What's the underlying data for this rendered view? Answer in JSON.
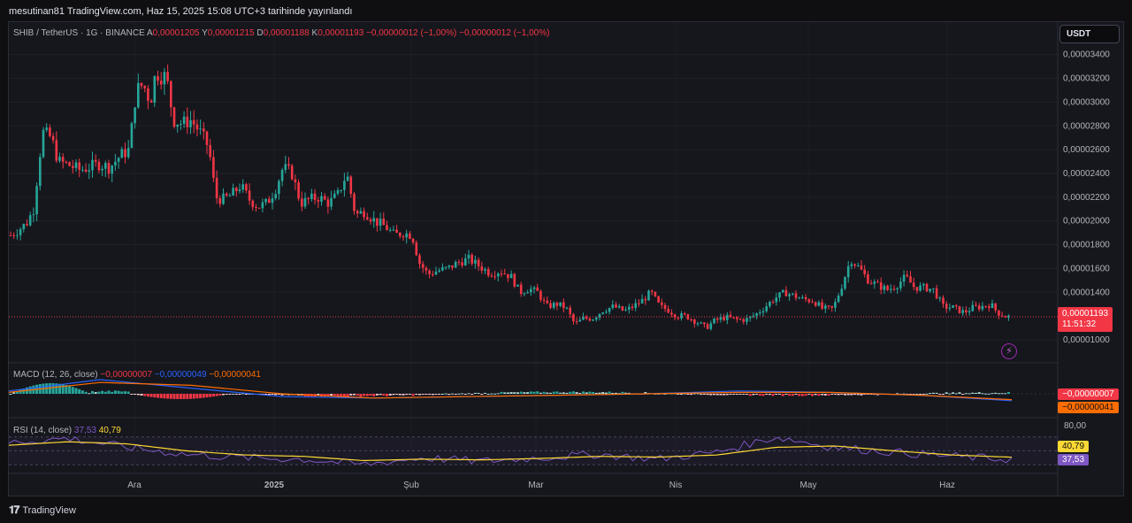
{
  "header": {
    "publish_line": "mesutinan81 TradingView.com, Haz 15, 2025 15:08 UTC+3 tarihinde yayınlandı"
  },
  "legend": {
    "symbol": "SHIB / TetherUS · 1G · BINANCE",
    "open_label": "A",
    "open": "0,00001205",
    "high_label": "Y",
    "high": "0,00001215",
    "low_label": "D",
    "low": "0,00001188",
    "close_label": "K",
    "close": "0,00001193",
    "change": "−0,00000012 (−1,00%)",
    "change2": "−0,00000012 (−1,00%)"
  },
  "currency_button": "USDT",
  "price_tag": {
    "price": "0,00001193",
    "countdown": "11:51:32"
  },
  "macd_legend": {
    "title": "MACD (12, 26, close)",
    "histogram": "−0,00000007",
    "macd": "−0,00000049",
    "signal": "−0,00000041"
  },
  "macd_tags": {
    "histogram": "−0,00000007",
    "signal": "−0,00000041"
  },
  "rsi_legend": {
    "title": "RSI (14, close)",
    "rsi": "37,53",
    "ma": "40,79"
  },
  "rsi_axis": {
    "top": "80,00"
  },
  "rsi_tags": {
    "ma": "40,79",
    "rsi": "37,53"
  },
  "footer": {
    "brand": "TradingView"
  },
  "colors": {
    "up": "#26a69a",
    "down": "#f23645",
    "macd": "#2962ff",
    "signal": "#ff6d00",
    "rsi": "#7e57c2",
    "rsi_ma": "#fdd835"
  },
  "chart_data": [
    {
      "type": "candlestick",
      "name": "SHIB / TetherUS · 1G · BINANCE",
      "x_ticks": [
        "Ara",
        "2025",
        "Şub",
        "Mar",
        "Nis",
        "May",
        "Haz"
      ],
      "y_ticks": [
        "0,00003400",
        "0,00003200",
        "0,00003000",
        "0,00002800",
        "0,00002600",
        "0,00002400",
        "0,00002200",
        "0,00002000",
        "0,00001800",
        "0,00001600",
        "0,00001400",
        "0,00001000"
      ],
      "ylim": [
        9.7e-06,
        3.45e-05
      ],
      "close_path": [
        [
          0,
          1.7e-05
        ],
        [
          6,
          1.78e-05
        ],
        [
          12,
          1.88e-05
        ],
        [
          20,
          1.92e-05
        ],
        [
          30,
          1.98e-05
        ],
        [
          38,
          2.1e-05
        ],
        [
          48,
          2.75e-05
        ],
        [
          58,
          2.7e-05
        ],
        [
          66,
          2.5e-05
        ],
        [
          78,
          2.47e-05
        ],
        [
          90,
          2.43e-05
        ],
        [
          100,
          2.45e-05
        ],
        [
          112,
          2.48e-05
        ],
        [
          124,
          2.45e-05
        ],
        [
          136,
          2.55e-05
        ],
        [
          146,
          2.6e-05
        ],
        [
          154,
          3.1e-05
        ],
        [
          162,
          3.15e-05
        ],
        [
          170,
          3e-05
        ],
        [
          176,
          3.25e-05
        ],
        [
          182,
          3.22e-05
        ],
        [
          188,
          3.22e-05
        ],
        [
          196,
          2.85e-05
        ],
        [
          206,
          2.82e-05
        ],
        [
          216,
          2.85e-05
        ],
        [
          226,
          2.75e-05
        ],
        [
          236,
          2.62e-05
        ],
        [
          244,
          2.2e-05
        ],
        [
          252,
          2.18e-05
        ],
        [
          262,
          2.22e-05
        ],
        [
          272,
          2.3e-05
        ],
        [
          282,
          2.18e-05
        ],
        [
          292,
          2.12e-05
        ],
        [
          302,
          2.15e-05
        ],
        [
          312,
          2.28e-05
        ],
        [
          320,
          2.45e-05
        ],
        [
          330,
          2.4e-05
        ],
        [
          340,
          2.15e-05
        ],
        [
          350,
          2.18e-05
        ],
        [
          360,
          2.2e-05
        ],
        [
          372,
          2.15e-05
        ],
        [
          382,
          2.22e-05
        ],
        [
          392,
          2.4e-05
        ],
        [
          402,
          2.05e-05
        ],
        [
          412,
          2.08e-05
        ],
        [
          424,
          2e-05
        ],
        [
          436,
          1.95e-05
        ],
        [
          446,
          1.88e-05
        ],
        [
          456,
          1.9e-05
        ],
        [
          466,
          1.88e-05
        ],
        [
          474,
          1.65e-05
        ],
        [
          484,
          1.55e-05
        ],
        [
          494,
          1.58e-05
        ],
        [
          506,
          1.6e-05
        ],
        [
          518,
          1.65e-05
        ],
        [
          530,
          1.68e-05
        ],
        [
          542,
          1.62e-05
        ],
        [
          554,
          1.56e-05
        ],
        [
          566,
          1.58e-05
        ],
        [
          578,
          1.53e-05
        ],
        [
          588,
          1.4e-05
        ],
        [
          598,
          1.43e-05
        ],
        [
          608,
          1.4e-05
        ],
        [
          618,
          1.28e-05
        ],
        [
          630,
          1.3e-05
        ],
        [
          640,
          1.27e-05
        ],
        [
          650,
          1.13e-05
        ],
        [
          660,
          1.18e-05
        ],
        [
          670,
          1.18e-05
        ],
        [
          682,
          1.25e-05
        ],
        [
          694,
          1.28e-05
        ],
        [
          706,
          1.24e-05
        ],
        [
          716,
          1.28e-05
        ],
        [
          726,
          1.33e-05
        ],
        [
          736,
          1.4e-05
        ],
        [
          746,
          1.28e-05
        ],
        [
          756,
          1.25e-05
        ],
        [
          766,
          1.2e-05
        ],
        [
          776,
          1.2e-05
        ],
        [
          788,
          1.15e-05
        ],
        [
          798,
          1.1e-05
        ],
        [
          808,
          1.16e-05
        ],
        [
          820,
          1.19e-05
        ],
        [
          832,
          1.17e-05
        ],
        [
          844,
          1.17e-05
        ],
        [
          854,
          1.21e-05
        ],
        [
          864,
          1.27e-05
        ],
        [
          876,
          1.35e-05
        ],
        [
          888,
          1.4e-05
        ],
        [
          898,
          1.37e-05
        ],
        [
          908,
          1.34e-05
        ],
        [
          920,
          1.33e-05
        ],
        [
          930,
          1.26e-05
        ],
        [
          942,
          1.26e-05
        ],
        [
          952,
          1.46e-05
        ],
        [
          962,
          1.68e-05
        ],
        [
          972,
          1.6e-05
        ],
        [
          982,
          1.5e-05
        ],
        [
          992,
          1.46e-05
        ],
        [
          1004,
          1.42e-05
        ],
        [
          1014,
          1.46e-05
        ],
        [
          1024,
          1.53e-05
        ],
        [
          1034,
          1.44e-05
        ],
        [
          1046,
          1.44e-05
        ],
        [
          1056,
          1.42e-05
        ],
        [
          1066,
          1.28e-05
        ],
        [
          1078,
          1.27e-05
        ],
        [
          1090,
          1.23e-05
        ],
        [
          1100,
          1.27e-05
        ],
        [
          1110,
          1.28e-05
        ],
        [
          1120,
          1.3e-05
        ],
        [
          1128,
          1.23e-05
        ],
        [
          1136,
          1.2e-05
        ],
        [
          1144,
          1.19e-05
        ]
      ]
    },
    {
      "type": "line",
      "name": "MACD (12, 26, close)",
      "series": [
        {
          "name": "MACD",
          "values": [
            2e-07,
            1e-06,
            4e-07,
            -2e-07,
            -3e-07,
            -2e-07,
            -1e-07,
            0.0,
            2e-07,
            1e-07,
            -1e-07,
            -4.9e-07
          ]
        },
        {
          "name": "Signal",
          "values": [
            1e-07,
            8e-07,
            6e-07,
            0.0,
            -3e-07,
            -2e-07,
            -1e-07,
            0.0,
            1e-07,
            1e-07,
            -1e-07,
            -4.1e-07
          ]
        }
      ],
      "last_histogram": -7e-08
    },
    {
      "type": "line",
      "name": "RSI (14, close)",
      "ylim": [
        20,
        90
      ],
      "y_ticks": [
        "80,00"
      ],
      "series": [
        {
          "name": "RSI",
          "values": [
            62,
            68,
            55,
            45,
            40,
            38,
            30,
            40,
            35,
            40,
            45,
            38,
            48,
            70,
            55,
            48,
            42,
            37.53
          ]
        },
        {
          "name": "MA",
          "values": [
            58,
            63,
            60,
            50,
            44,
            42,
            36,
            38,
            37,
            39,
            42,
            41,
            44,
            55,
            57,
            50,
            44,
            40.79
          ]
        }
      ]
    }
  ]
}
